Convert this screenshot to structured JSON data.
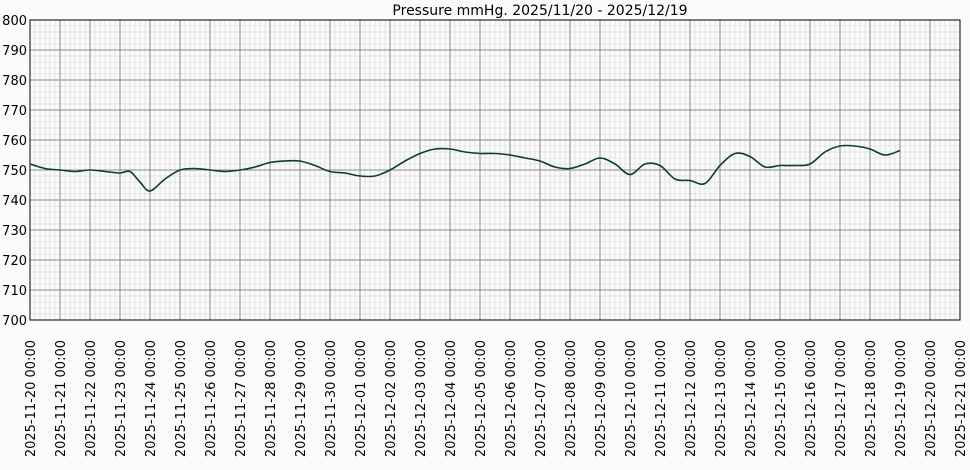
{
  "chart_data": {
    "type": "line",
    "title": "Pressure mmHg. 2025/11/20 - 2025/12/19",
    "xlabel": "",
    "ylabel": "",
    "ylim": [
      700,
      800
    ],
    "y_ticks": [
      700,
      710,
      720,
      730,
      740,
      750,
      760,
      770,
      780,
      790,
      800
    ],
    "x_range": [
      "2025-11-20 00:00",
      "2025-12-21 00:00"
    ],
    "x_tick_labels": [
      "2025-11-20 00:00",
      "2025-11-21 00:00",
      "2025-11-22 00:00",
      "2025-11-23 00:00",
      "2025-11-24 00:00",
      "2025-11-25 00:00",
      "2025-11-26 00:00",
      "2025-11-27 00:00",
      "2025-11-28 00:00",
      "2025-11-29 00:00",
      "2025-11-30 00:00",
      "2025-12-01 00:00",
      "2025-12-02 00:00",
      "2025-12-03 00:00",
      "2025-12-04 00:00",
      "2025-12-05 00:00",
      "2025-12-06 00:00",
      "2025-12-07 00:00",
      "2025-12-08 00:00",
      "2025-12-09 00:00",
      "2025-12-10 00:00",
      "2025-12-11 00:00",
      "2025-12-12 00:00",
      "2025-12-13 00:00",
      "2025-12-14 00:00",
      "2025-12-15 00:00",
      "2025-12-16 00:00",
      "2025-12-17 00:00",
      "2025-12-18 00:00",
      "2025-12-19 00:00",
      "2025-12-20 00:00",
      "2025-12-21 00:00"
    ],
    "grid": true,
    "line_color": "#0b3b3b",
    "series": [
      {
        "x": [
          "2025-11-20 00:00",
          "2025-11-20 12:00",
          "2025-11-21 00:00",
          "2025-11-21 12:00",
          "2025-11-22 00:00",
          "2025-11-22 12:00",
          "2025-11-23 00:00",
          "2025-11-23 08:00",
          "2025-11-23 16:00",
          "2025-11-24 00:00",
          "2025-11-24 12:00",
          "2025-11-25 00:00",
          "2025-11-25 12:00",
          "2025-11-26 00:00",
          "2025-11-26 12:00",
          "2025-11-27 00:00",
          "2025-11-27 12:00",
          "2025-11-28 00:00",
          "2025-11-28 12:00",
          "2025-11-29 00:00",
          "2025-11-29 12:00",
          "2025-11-30 00:00",
          "2025-11-30 12:00",
          "2025-12-01 00:00",
          "2025-12-01 12:00",
          "2025-12-02 00:00",
          "2025-12-02 12:00",
          "2025-12-03 00:00",
          "2025-12-03 12:00",
          "2025-12-04 00:00",
          "2025-12-04 12:00",
          "2025-12-05 00:00",
          "2025-12-05 12:00",
          "2025-12-06 00:00",
          "2025-12-06 12:00",
          "2025-12-07 00:00",
          "2025-12-07 12:00",
          "2025-12-08 00:00",
          "2025-12-08 12:00",
          "2025-12-09 00:00",
          "2025-12-09 12:00",
          "2025-12-10 00:00",
          "2025-12-10 12:00",
          "2025-12-11 00:00",
          "2025-12-11 12:00",
          "2025-12-12 00:00",
          "2025-12-12 12:00",
          "2025-12-13 00:00",
          "2025-12-13 12:00",
          "2025-12-14 00:00",
          "2025-12-14 12:00",
          "2025-12-15 00:00",
          "2025-12-15 12:00",
          "2025-12-16 00:00",
          "2025-12-16 12:00",
          "2025-12-17 00:00",
          "2025-12-17 12:00",
          "2025-12-18 00:00",
          "2025-12-18 12:00",
          "2025-12-19 00:00"
        ],
        "values": [
          752,
          750.5,
          750,
          749.5,
          750,
          749.5,
          749,
          749.5,
          746,
          743,
          747,
          750,
          750.5,
          750,
          749.5,
          750,
          751,
          752.5,
          753,
          753,
          751.5,
          749.5,
          749,
          748,
          748,
          750,
          753,
          755.5,
          757,
          757,
          756,
          755.5,
          755.5,
          755,
          754,
          753,
          751,
          750.5,
          752,
          754,
          752,
          748.5,
          752,
          751.5,
          747,
          746.5,
          745.5,
          751.5,
          755.5,
          754.5,
          751,
          751.5,
          751.5,
          752,
          756,
          758,
          758,
          757,
          755,
          756.5
        ]
      }
    ]
  }
}
